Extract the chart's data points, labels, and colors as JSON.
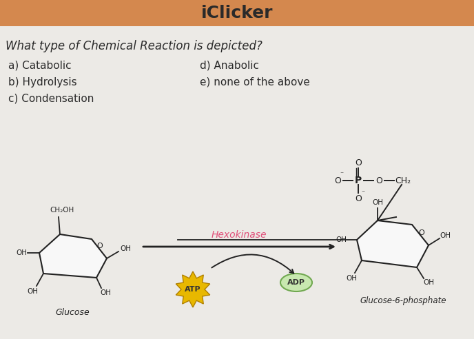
{
  "title": "iClicker",
  "title_bg_color": "#D4884E",
  "title_text_color": "#2a2a2a",
  "bg_color": "#eceae6",
  "question": "What type of Chemical Reaction is depicted?",
  "question_color": "#2a2a2a",
  "options_left": [
    "a) Catabolic",
    "b) Hydrolysis",
    "c) Condensation"
  ],
  "options_right": [
    "d) Anabolic",
    "e) none of the above"
  ],
  "options_color": "#2a2a2a",
  "enzyme_label": "Hexokinase",
  "enzyme_color": "#e0507a",
  "glucose_label": "Glucose",
  "product_label": "Glucose-6-phosphate",
  "atp_label": "ATP",
  "adp_label": "ADP",
  "arrow_color": "#222222",
  "molecule_color": "#222222",
  "sugar_fill": "#f8f8f8",
  "sugar_stroke": "#222222"
}
